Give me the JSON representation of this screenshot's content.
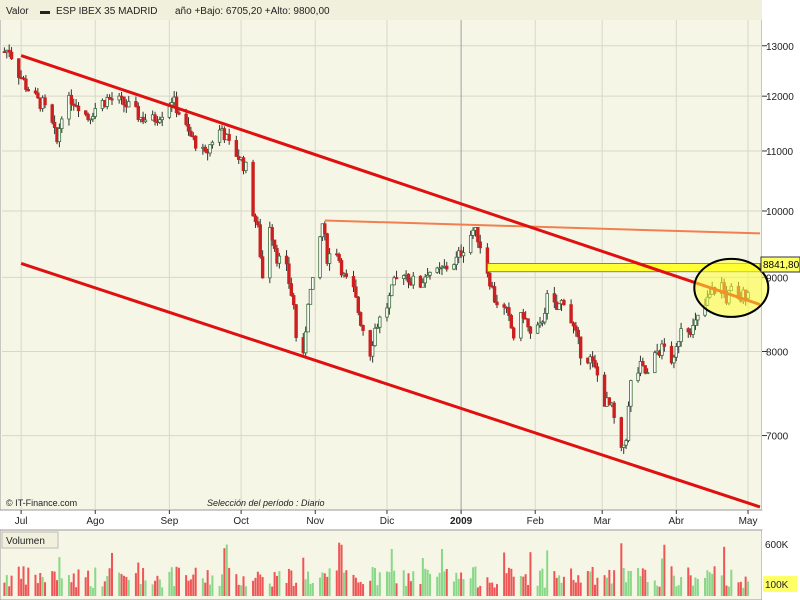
{
  "header": {
    "label": "Valor",
    "legend_symbol": "▬",
    "series_name": "ESP IBEX 35 MADRID",
    "stats": "año +Bajo: 6705,20 +Alto: 9800,00"
  },
  "footer": {
    "copyright": "© IT-Finance.com",
    "period": "Selección del período : Diario"
  },
  "volume_panel": {
    "label": "Volumen",
    "y_ticks": [
      "600K",
      "100K"
    ]
  },
  "colors": {
    "background": "#ffffff",
    "panel_bg": "#f6f6e6",
    "up_candle": "#3a6b3a",
    "down_candle": "#cc2020",
    "trend_line": "#e01010",
    "resistance_line": "#f08050",
    "highlight": "#ffff33",
    "vol_up": "#88d888",
    "vol_down": "#ee5555"
  },
  "chart_data": {
    "type": "candlestick",
    "title": "ESP IBEX 35 MADRID",
    "y_scale": "log",
    "ylim": [
      6400,
      13500
    ],
    "y_ticks": [
      13000,
      12000,
      11000,
      10000,
      9000,
      8000,
      7000
    ],
    "x_tick_labels": [
      "Jul",
      "Ago",
      "Sep",
      "Oct",
      "Nov",
      "Dic",
      "2009",
      "Feb",
      "Mar",
      "Abr",
      "May"
    ],
    "x_range": [
      "2008-06-23",
      "2009-05-06"
    ],
    "last_value_label": "8841,80",
    "year_low": 6705.2,
    "year_high": 9800.0,
    "price_path": [
      [
        "2008-06-24",
        12880
      ],
      [
        "2008-06-26",
        12930
      ],
      [
        "2008-06-30",
        12450
      ],
      [
        "2008-07-03",
        12200
      ],
      [
        "2008-07-08",
        11900
      ],
      [
        "2008-07-10",
        11850
      ],
      [
        "2008-07-14",
        11450
      ],
      [
        "2008-07-16",
        11150
      ],
      [
        "2008-07-18",
        11700
      ],
      [
        "2008-07-22",
        11950
      ],
      [
        "2008-07-25",
        11850
      ],
      [
        "2008-07-29",
        11600
      ],
      [
        "2008-08-01",
        11780
      ],
      [
        "2008-08-06",
        11950
      ],
      [
        "2008-08-11",
        11900
      ],
      [
        "2008-08-15",
        11800
      ],
      [
        "2008-08-20",
        11600
      ],
      [
        "2008-08-25",
        11550
      ],
      [
        "2008-08-29",
        11700
      ],
      [
        "2008-09-02",
        11950
      ],
      [
        "2008-09-05",
        11700
      ],
      [
        "2008-09-09",
        11300
      ],
      [
        "2008-09-12",
        11150
      ],
      [
        "2008-09-16",
        10900
      ],
      [
        "2008-09-19",
        11200
      ],
      [
        "2008-09-23",
        11400
      ],
      [
        "2008-09-26",
        11100
      ],
      [
        "2008-09-30",
        10900
      ],
      [
        "2008-10-03",
        10700
      ],
      [
        "2008-10-06",
        10000
      ],
      [
        "2008-10-08",
        9700
      ],
      [
        "2008-10-10",
        9000
      ],
      [
        "2008-10-13",
        9800
      ],
      [
        "2008-10-16",
        9300
      ],
      [
        "2008-10-20",
        9100
      ],
      [
        "2008-10-23",
        8600
      ],
      [
        "2008-10-24",
        8200
      ],
      [
        "2008-10-27",
        7900
      ],
      [
        "2008-10-29",
        8700
      ],
      [
        "2008-10-31",
        8900
      ],
      [
        "2008-11-04",
        9800
      ],
      [
        "2008-11-06",
        9300
      ],
      [
        "2008-11-10",
        9400
      ],
      [
        "2008-11-13",
        9000
      ],
      [
        "2008-11-17",
        8800
      ],
      [
        "2008-11-20",
        8400
      ],
      [
        "2008-11-24",
        8000
      ],
      [
        "2008-11-26",
        8300
      ],
      [
        "2008-12-01",
        8600
      ],
      [
        "2008-12-04",
        8900
      ],
      [
        "2008-12-08",
        9100
      ],
      [
        "2008-12-11",
        8950
      ],
      [
        "2008-12-15",
        8900
      ],
      [
        "2008-12-18",
        9100
      ],
      [
        "2008-12-22",
        9050
      ],
      [
        "2008-12-30",
        9250
      ],
      [
        "2009-01-06",
        9700
      ],
      [
        "2009-01-08",
        9600
      ],
      [
        "2009-01-12",
        9100
      ],
      [
        "2009-01-15",
        8700
      ],
      [
        "2009-01-20",
        8500
      ],
      [
        "2009-01-23",
        8200
      ],
      [
        "2009-01-27",
        8500
      ],
      [
        "2009-01-30",
        8200
      ],
      [
        "2009-02-03",
        8300
      ],
      [
        "2009-02-06",
        8700
      ],
      [
        "2009-02-10",
        8550
      ],
      [
        "2009-02-13",
        8700
      ],
      [
        "2009-02-17",
        8300
      ],
      [
        "2009-02-20",
        8000
      ],
      [
        "2009-02-24",
        7900
      ],
      [
        "2009-02-27",
        7700
      ],
      [
        "2009-03-02",
        7400
      ],
      [
        "2009-03-05",
        7300
      ],
      [
        "2009-03-09",
        6800
      ],
      [
        "2009-03-11",
        7000
      ],
      [
        "2009-03-13",
        7600
      ],
      [
        "2009-03-17",
        7800
      ],
      [
        "2009-03-20",
        7700
      ],
      [
        "2009-03-24",
        8000
      ],
      [
        "2009-03-27",
        8050
      ],
      [
        "2009-03-31",
        7850
      ],
      [
        "2009-04-03",
        8350
      ],
      [
        "2009-04-08",
        8300
      ],
      [
        "2009-04-13",
        8600
      ],
      [
        "2009-04-16",
        8800
      ],
      [
        "2009-04-20",
        8900
      ],
      [
        "2009-04-22",
        8700
      ],
      [
        "2009-04-24",
        8800
      ],
      [
        "2009-04-27",
        8650
      ],
      [
        "2009-04-29",
        8750
      ],
      [
        "2009-05-01",
        8841.8
      ]
    ],
    "annotations": {
      "upper_trend_line": [
        [
          "2008-07-01",
          12800
        ],
        [
          "2009-05-06",
          8620
        ]
      ],
      "lower_trend_line": [
        [
          "2008-07-01",
          9200
        ],
        [
          "2009-05-06",
          6250
        ]
      ],
      "resistance_line": [
        [
          "2008-11-05",
          9850
        ],
        [
          "2009-05-06",
          9650
        ]
      ],
      "highlight_band": {
        "from": "2009-01-12",
        "to": "2009-05-06",
        "y_low": 9080,
        "y_high": 9200
      },
      "highlight_circle_center": [
        "2009-04-24",
        8850
      ]
    }
  }
}
